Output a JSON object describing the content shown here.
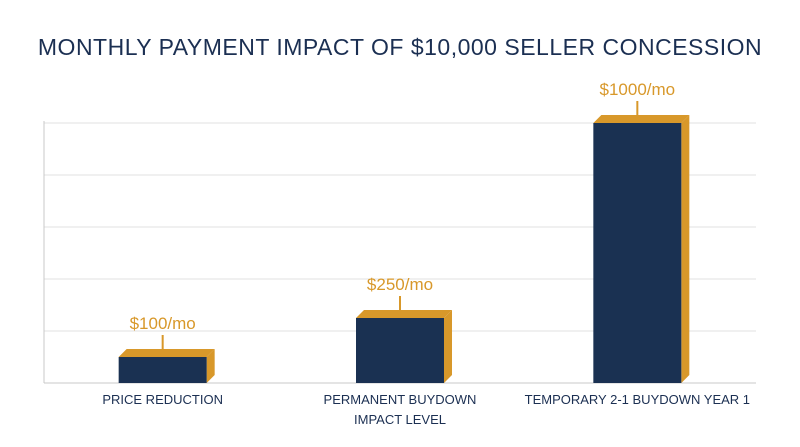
{
  "chart_data": {
    "type": "bar",
    "title": "MONTHLY PAYMENT IMPACT OF $10,000 SELLER CONCESSION",
    "xlabel": "IMPACT LEVEL",
    "ylabel": "",
    "categories": [
      "PRICE REDUCTION",
      "PERMANENT BUYDOWN",
      "TEMPORARY 2-1 BUYDOWN YEAR 1"
    ],
    "values": [
      100,
      250,
      1000
    ],
    "value_labels": [
      "$100/mo",
      "$250/mo",
      "$1000/mo"
    ],
    "ylim": [
      0,
      1000
    ],
    "grid": true,
    "legend": "none",
    "colors": {
      "bar_front": "#1a3152",
      "bar_side": "#d8982a",
      "label": "#d8982a",
      "text": "#1b2f52",
      "grid": "#e2e2e2",
      "axis": "#c8c8c8"
    }
  }
}
